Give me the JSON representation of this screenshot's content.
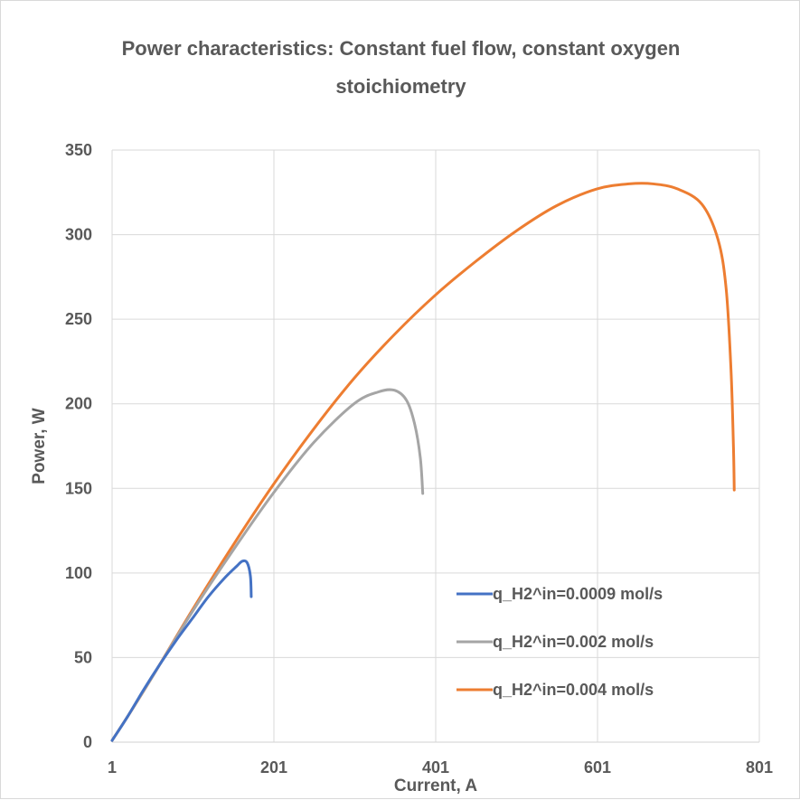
{
  "chart_data": {
    "type": "line",
    "title": "Power characteristics: Constant fuel flow, constant oxygen stoichiometry",
    "xlabel": "Current, A",
    "ylabel": "Power, W",
    "xlim": [
      1,
      801
    ],
    "ylim": [
      0,
      350
    ],
    "xticks": [
      1,
      201,
      401,
      601,
      801
    ],
    "yticks": [
      0,
      50,
      100,
      150,
      200,
      250,
      300,
      350
    ],
    "grid": true,
    "legend_position": "bottom-right",
    "series": [
      {
        "name": "q_H2^in=0.0009 mol/s",
        "color": "#4472c4",
        "x": [
          1,
          20,
          40,
          60,
          80,
          100,
          120,
          140,
          155,
          162,
          168,
          172,
          173
        ],
        "y": [
          1,
          15,
          31,
          46,
          60,
          73,
          86,
          97,
          104,
          107,
          106,
          98,
          86
        ]
      },
      {
        "name": "q_H2^in=0.002 mol/s",
        "color": "#a5a5a5",
        "x": [
          1,
          20,
          50,
          100,
          150,
          200,
          250,
          300,
          330,
          350,
          365,
          375,
          382,
          385
        ],
        "y": [
          1,
          15,
          38,
          77,
          113,
          147,
          177,
          200,
          207,
          208,
          202,
          188,
          168,
          147
        ]
      },
      {
        "name": "q_H2^in=0.004 mol/s",
        "color": "#ed7d31",
        "x": [
          1,
          20,
          50,
          100,
          150,
          200,
          250,
          300,
          350,
          400,
          450,
          500,
          550,
          600,
          640,
          670,
          700,
          730,
          750,
          760,
          766,
          769,
          770
        ],
        "y": [
          1,
          15,
          38,
          78,
          116,
          152,
          185,
          215,
          241,
          264,
          284,
          302,
          317,
          327,
          330,
          330,
          327,
          318,
          297,
          268,
          220,
          175,
          149
        ]
      }
    ]
  }
}
